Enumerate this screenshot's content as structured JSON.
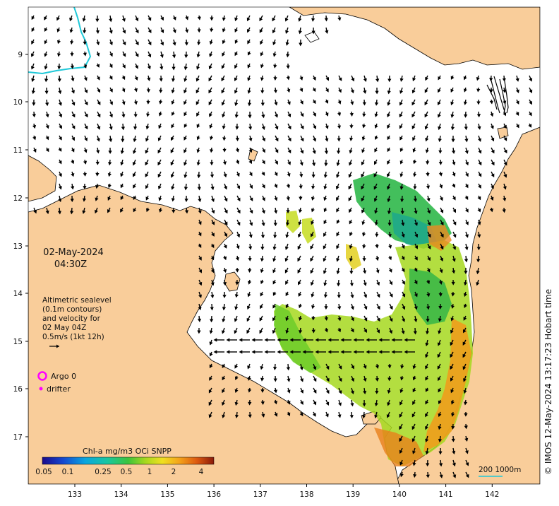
{
  "map": {
    "date": "02-May-2024",
    "time": "04:30Z",
    "legend_lines": [
      "Altimetric sealevel",
      "(0.1m contours)",
      "and velocity for",
      "02 May 04Z",
      "0.5m/s (1kt 12h)"
    ],
    "markers": {
      "argo_label": "Argo 0",
      "drifter_label": "drifter"
    },
    "colorbar": {
      "title": "Chl-a mg/m3 OCi SNPP",
      "ticks": [
        "0.05",
        "0.1",
        "0.25",
        "0.5",
        "1",
        "2",
        "4"
      ]
    },
    "scale_label": "200  1000m",
    "credit": "© IMOS 12-May-2024 13:17:23 Hobart time",
    "lat_ticks": [
      "9",
      "10",
      "11",
      "12",
      "13",
      "14",
      "15",
      "16",
      "17"
    ],
    "lon_ticks": [
      "133",
      "134",
      "135",
      "136",
      "137",
      "138",
      "139",
      "140",
      "141",
      "142"
    ],
    "colors": {
      "land": "#f9cd9a",
      "ocean": "#ffffff",
      "coast": "#000000",
      "contour_cyan": "#1fc8d8",
      "argo": "#ff00ff"
    }
  }
}
